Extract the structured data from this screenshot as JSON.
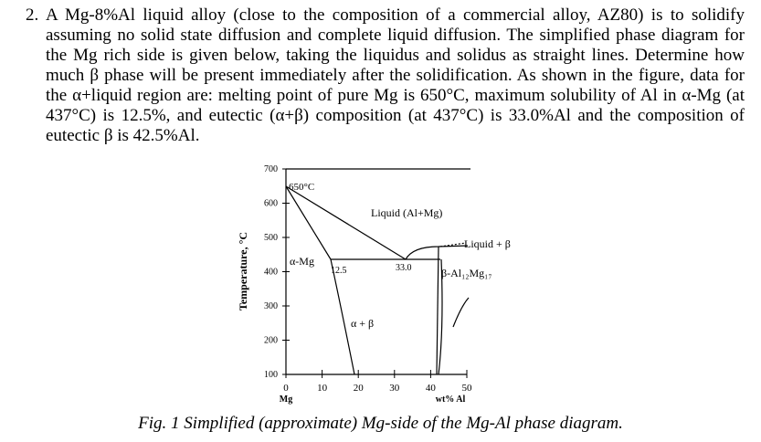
{
  "problem": {
    "number": "2.",
    "text": "A Mg-8%Al liquid alloy (close to the composition of a commercial alloy, AZ80) is to solidify assuming no solid state diffusion and complete liquid diffusion. The simplified phase diagram for the Mg rich side is given below, taking the liquidus and solidus as straight lines. Determine how much β phase will be present immediately after the solidification. As shown in the figure, data for the α+liquid region are: melting point of pure Mg is 650°C, maximum solubility of Al in α-Mg (at 437°C) is 12.5%, and eutectic (α+β) composition (at 437°C) is 33.0%Al and the composition of eutectic β is 42.5%Al."
  },
  "figure": {
    "y_label": "Temperature, °C",
    "x_label": "wt% Al",
    "x_start_label": "Mg",
    "xlim": [
      0,
      50
    ],
    "xticks": [
      0,
      10,
      20,
      30,
      40,
      50
    ],
    "ylim": [
      100,
      700
    ],
    "yticks": [
      100,
      200,
      300,
      400,
      500,
      600,
      700
    ],
    "labels": {
      "melting": "650°C",
      "liquid": "Liquid (Al+Mg)",
      "liquid_beta": "Liquid + β",
      "alpha": "α-Mg",
      "solubility": "12.5",
      "eutectic": "33.0",
      "beta": "β-Al₁₂Mg₁₇",
      "alpha_beta": "α + β"
    },
    "caption": "Fig. 1 Simplified (approximate) Mg-side of the Mg-Al phase diagram."
  }
}
